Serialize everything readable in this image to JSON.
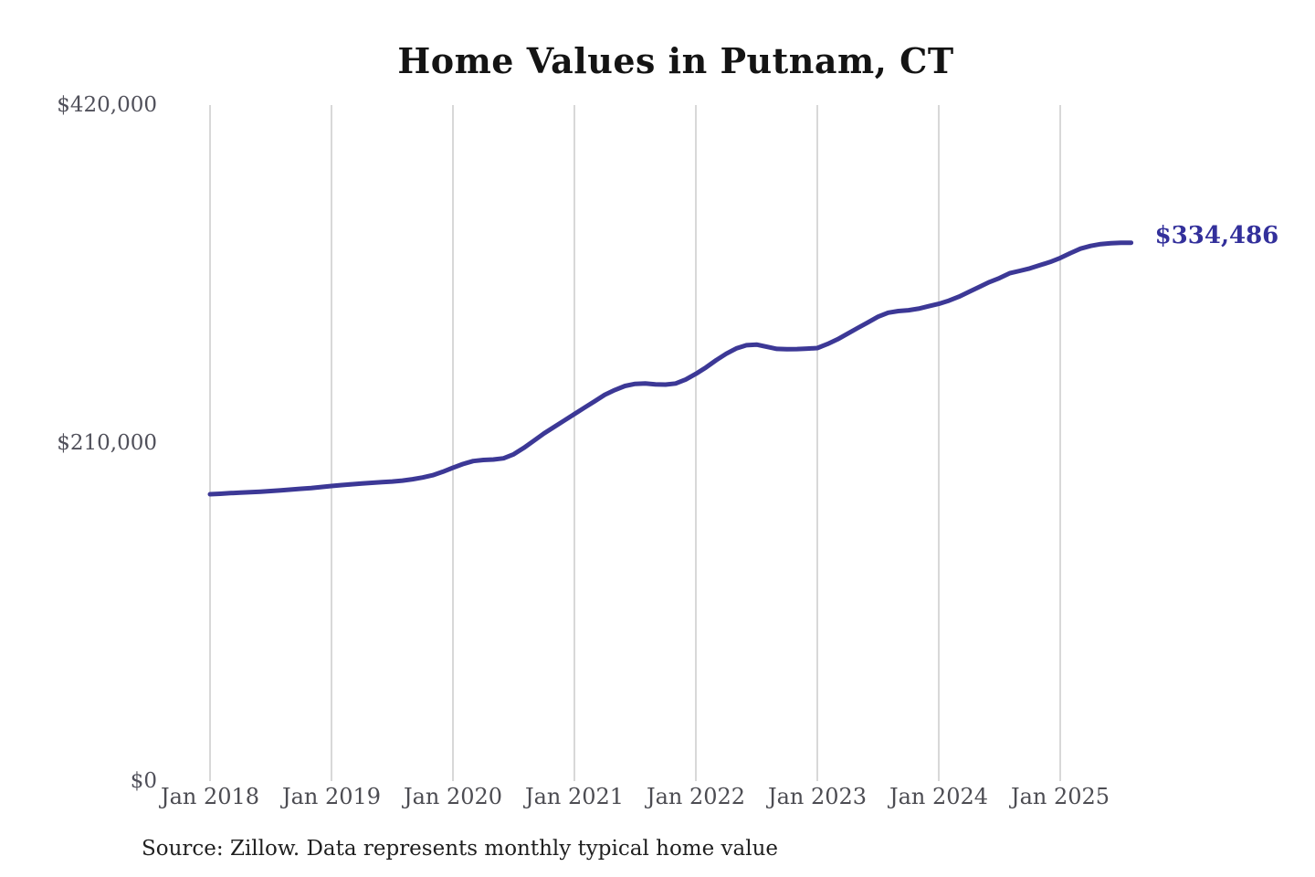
{
  "chart_data": {
    "type": "line",
    "title": "Home Values in Putnam, CT",
    "source_note": "Source: Zillow. Data represents monthly typical home value",
    "end_label": "$334,486",
    "end_value": 334486,
    "xlabel": "",
    "ylabel": "",
    "x_ticks": [
      "Jan 2018",
      "Jan 2019",
      "Jan 2020",
      "Jan 2021",
      "Jan 2022",
      "Jan 2023",
      "Jan 2024",
      "Jan 2025"
    ],
    "y_ticks": [
      {
        "label": "$0",
        "value": 0
      },
      {
        "label": "$210,000",
        "value": 210000
      },
      {
        "label": "$420,000",
        "value": 420000
      }
    ],
    "ylim": [
      0,
      420000
    ],
    "frequency": "monthly",
    "x_start": "Jan 2018",
    "x_end": "Aug 2025",
    "grid": "vertical-only",
    "legend_position": "none",
    "series": [
      {
        "name": "Typical home value",
        "values": [
          178200,
          178500,
          178900,
          179200,
          179500,
          179800,
          180200,
          180600,
          181100,
          181600,
          182100,
          182700,
          183300,
          183900,
          184400,
          184900,
          185300,
          185700,
          186100,
          186700,
          187500,
          188600,
          190000,
          192200,
          194700,
          197000,
          198800,
          199500,
          199800,
          200500,
          203000,
          207000,
          211500,
          216000,
          220000,
          224000,
          228000,
          232000,
          236000,
          240000,
          243000,
          245500,
          246800,
          247000,
          246500,
          246300,
          247000,
          249500,
          253000,
          257000,
          261500,
          265500,
          268800,
          270800,
          271200,
          269800,
          268500,
          268300,
          268400,
          268700,
          269000,
          271500,
          274500,
          278000,
          281500,
          285000,
          288500,
          291000,
          292000,
          292500,
          293500,
          295000,
          296500,
          298500,
          301000,
          304000,
          307000,
          310000,
          312500,
          315500,
          317000,
          318500,
          320500,
          322500,
          325000,
          328000,
          330800,
          332500,
          333600,
          334100,
          334400,
          334486
        ]
      }
    ],
    "colors": {
      "line": "#3c3896",
      "end_label": "#33309b",
      "gridline": "#cccccc",
      "title_text": "#141414",
      "tick_text": "#4c4c52",
      "background": "#ffffff"
    }
  }
}
